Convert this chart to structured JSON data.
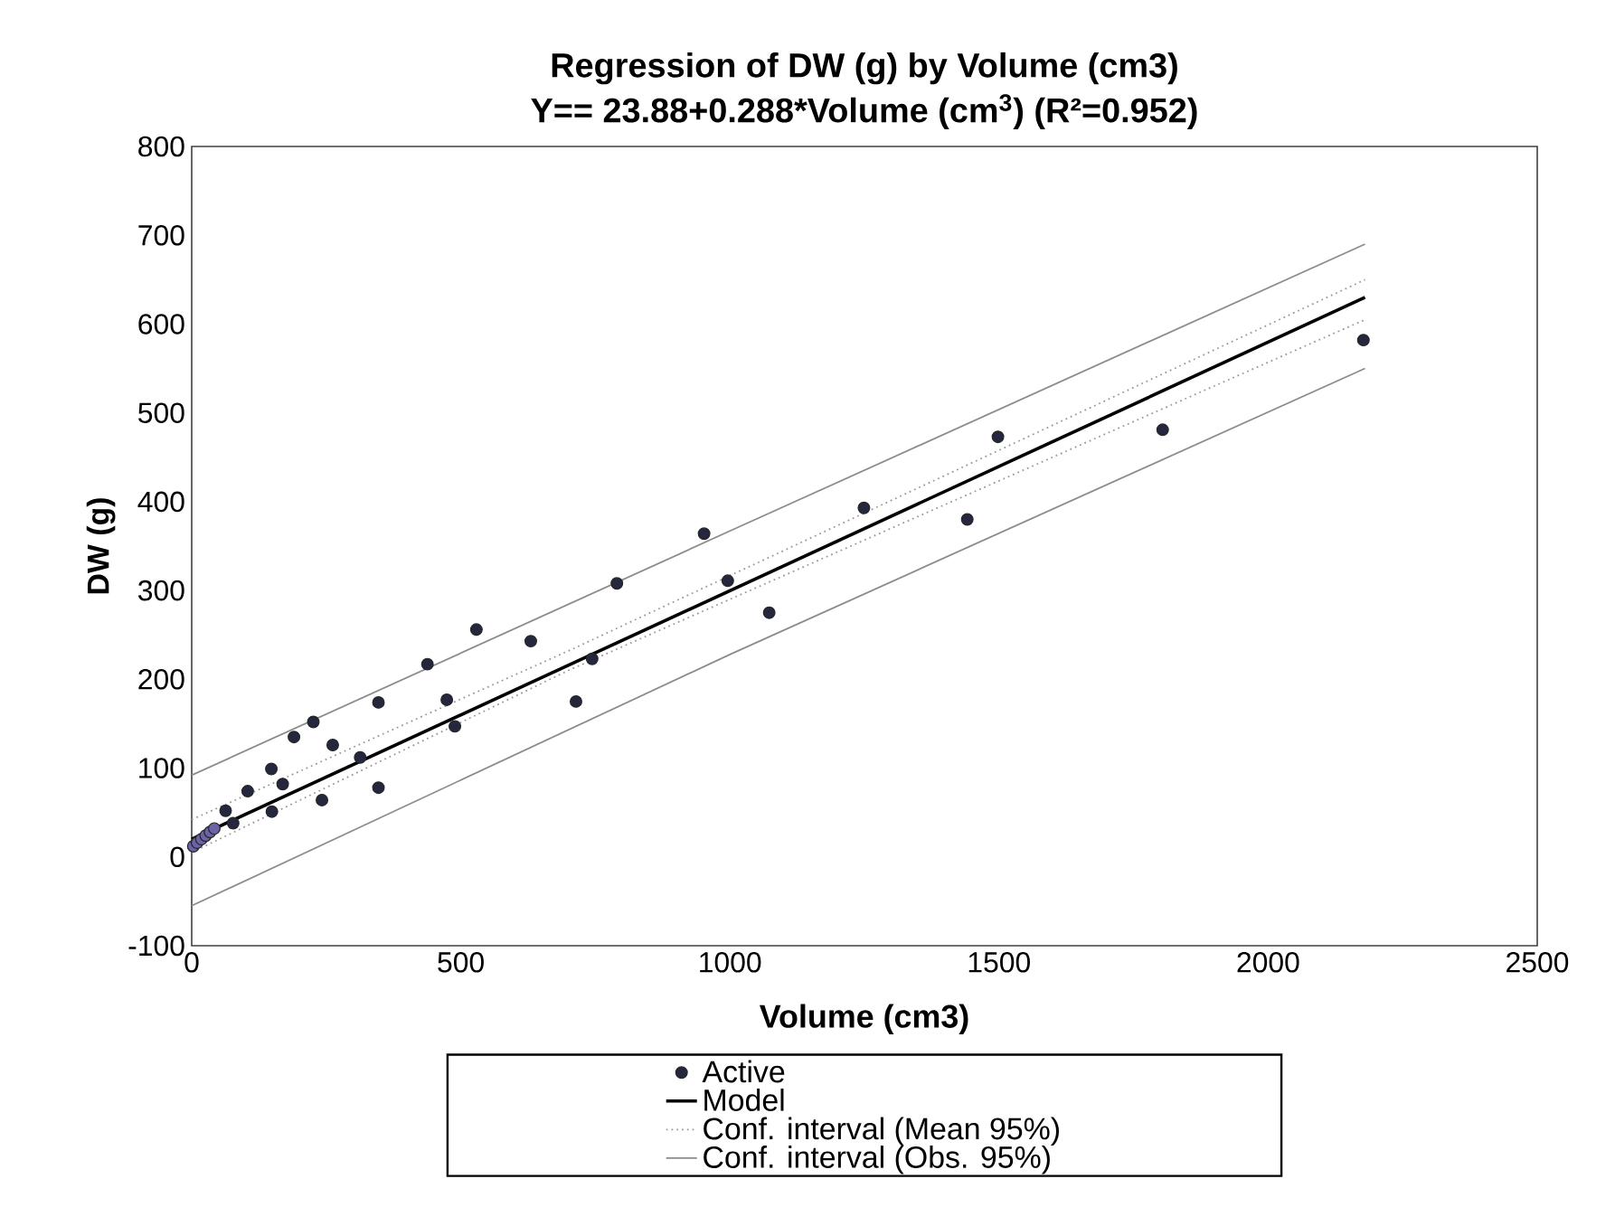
{
  "chart_data": {
    "type": "scatter",
    "title": "Regression of DW (g) by Volume (cm3)",
    "subtitle": "Y== 23.88+0.288*Volume (cm$^{3}$) (R²=0.952)",
    "xlabel": "Volume (cm3)",
    "ylabel": "DW (g)",
    "xlim": [
      0,
      2500
    ],
    "xticks": [
      0,
      500,
      1000,
      1500,
      2000,
      2500
    ],
    "ylim": [
      -100,
      800
    ],
    "yticks": [
      -100,
      0,
      100,
      200,
      300,
      400,
      500,
      600,
      700,
      800
    ],
    "grid": false,
    "legend": "bottom",
    "series": [
      {
        "name": "Active",
        "marker": "circle",
        "color": "#25273f",
        "x": [
          63,
          77,
          104,
          148,
          149,
          169,
          190,
          226,
          242,
          262,
          313,
          347,
          347,
          438,
          474,
          489,
          529,
          630,
          714,
          744,
          790,
          952,
          996,
          1073,
          1249,
          1441,
          1498,
          1804,
          2177
        ],
        "values": [
          52,
          38,
          74,
          99,
          51,
          82,
          135,
          152,
          64,
          126,
          112,
          174,
          78,
          217,
          177,
          147,
          256,
          243,
          175,
          223,
          308,
          364,
          311,
          275,
          393,
          380,
          473,
          481,
          582
        ]
      },
      {
        "marker": "circle",
        "color": "#6a63a8",
        "x": [
          3,
          10,
          18,
          26,
          34,
          42
        ],
        "values": [
          12,
          16,
          20,
          24,
          28,
          32
        ]
      },
      {
        "name": "Model",
        "type": "line",
        "marker": "none",
        "color": "#000000",
        "line_style": "solid",
        "x": [
          0,
          2180
        ],
        "values": [
          20,
          630
        ]
      },
      {
        "name": "Conf. interval (Mean 95%)",
        "type": "line",
        "marker": "none",
        "color": "#9a9a9a",
        "line_style": "dotted",
        "x": [
          0,
          700,
          2180
        ],
        "values": [
          42,
          232,
          650
        ]
      },
      {
        "type": "line",
        "marker": "none",
        "color": "#9a9a9a",
        "line_style": "dotted",
        "x": [
          0,
          700,
          2180
        ],
        "values": [
          5,
          210,
          605
        ]
      },
      {
        "name": "Conf. interval (Obs. 95%)",
        "type": "line",
        "marker": "none",
        "color": "#8c8c8c",
        "line_style": "solid",
        "x": [
          0,
          1000,
          2180
        ],
        "values": [
          92,
          367,
          690
        ]
      },
      {
        "type": "line",
        "marker": "none",
        "color": "#8c8c8c",
        "line_style": "solid",
        "x": [
          0,
          1000,
          2180
        ],
        "values": [
          -55,
          228,
          550
        ]
      }
    ]
  }
}
